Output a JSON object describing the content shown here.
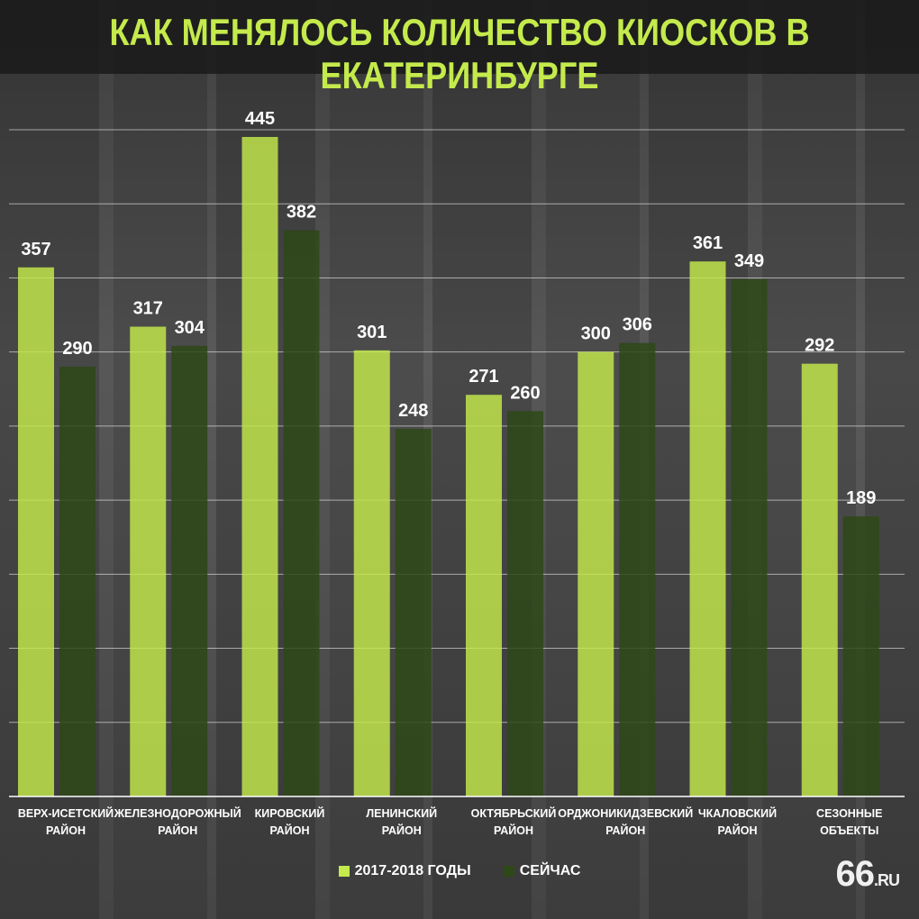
{
  "title": "КАК МЕНЯЛОСЬ КОЛИЧЕСТВО КИОСКОВ В ЕКАТЕРИНБУРГЕ",
  "logo": "66",
  "logo_suffix": ".RU",
  "colors": {
    "series1": "#c4ea4c",
    "series2": "#2e4817",
    "title": "#c4ea4c"
  },
  "chart_data": {
    "type": "bar",
    "categories": [
      [
        "ВЕРХ-ИСЕТСКИЙ",
        "РАЙОН"
      ],
      [
        "ЖЕЛЕЗНОДОРОЖНЫЙ",
        "РАЙОН"
      ],
      [
        "КИРОВСКИЙ",
        "РАЙОН"
      ],
      [
        "ЛЕНИНСКИЙ",
        "РАЙОН"
      ],
      [
        "ОКТЯБРЬСКИЙ",
        "РАЙОН"
      ],
      [
        "ОРДЖОНИКИДЗЕВСКИЙ",
        "РАЙОН"
      ],
      [
        "ЧКАЛОВСКИЙ",
        "РАЙОН"
      ],
      [
        "СЕЗОННЫЕ",
        "ОБЪЕКТЫ"
      ]
    ],
    "series": [
      {
        "name": "2017-2018 ГОДЫ",
        "values": [
          357,
          317,
          445,
          301,
          271,
          300,
          361,
          292
        ]
      },
      {
        "name": "СЕЙЧАС",
        "values": [
          290,
          304,
          382,
          248,
          260,
          306,
          349,
          189
        ]
      }
    ],
    "ylim": [
      0,
      450
    ],
    "grid": true,
    "legend_position": "bottom-center"
  }
}
